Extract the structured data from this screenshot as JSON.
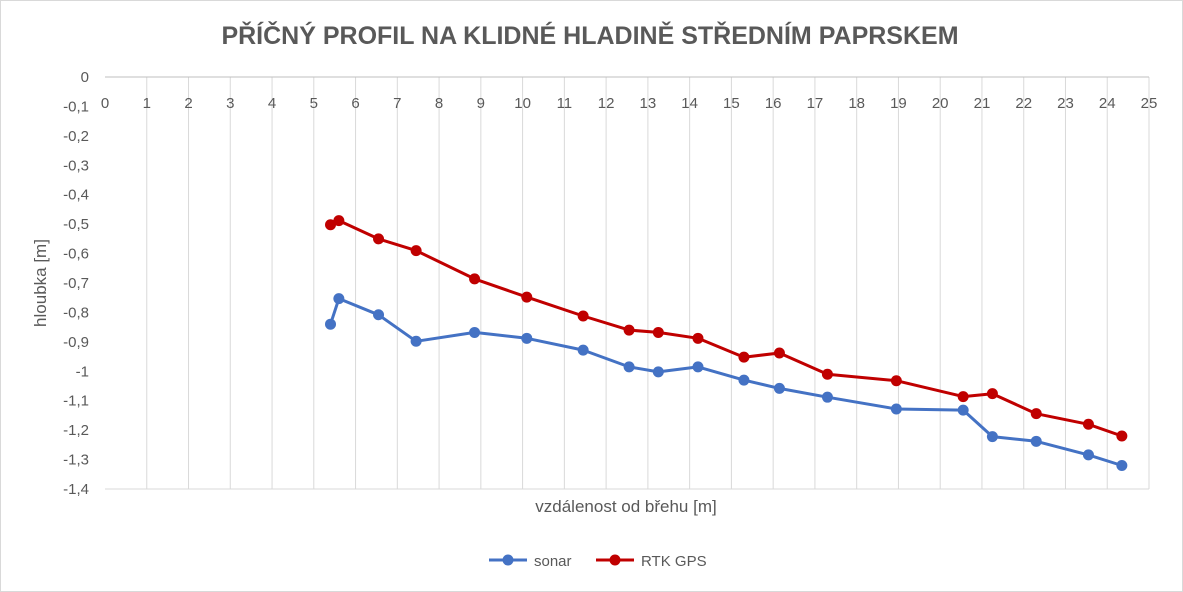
{
  "chart_data": {
    "type": "scatter",
    "title": "PŘÍČNÝ PROFIL NA KLIDNÉ HLADINĚ STŘEDNÍM PAPRSKEM",
    "xlabel": "vzdálenost od břehu [m]",
    "ylabel": "hloubka [m]",
    "xlim": [
      0,
      25
    ],
    "ylim": [
      -1.4,
      0
    ],
    "x_ticks": [
      "0",
      "1",
      "2",
      "3",
      "4",
      "5",
      "6",
      "7",
      "8",
      "9",
      "10",
      "11",
      "12",
      "13",
      "14",
      "15",
      "16",
      "17",
      "18",
      "19",
      "20",
      "21",
      "22",
      "23",
      "24",
      "25"
    ],
    "y_ticks": [
      "0",
      "-0,1",
      "-0,2",
      "-0,3",
      "-0,4",
      "-0,5",
      "-0,6",
      "-0,7",
      "-0,8",
      "-0,9",
      "-1",
      "-1,1",
      "-1,2",
      "-1,3",
      "-1,4"
    ],
    "grid": "vertical",
    "legend_position": "bottom",
    "series": [
      {
        "name": "sonar",
        "color": "#4472c4",
        "x": [
          5.4,
          5.6,
          6.55,
          7.45,
          8.85,
          10.1,
          11.45,
          12.55,
          13.25,
          14.2,
          15.3,
          16.15,
          17.3,
          18.95,
          20.55,
          21.25,
          22.3,
          23.55,
          24.35
        ],
        "y": [
          -0.84,
          -0.753,
          -0.808,
          -0.898,
          -0.868,
          -0.888,
          -0.928,
          -0.985,
          -1.002,
          -0.985,
          -1.03,
          -1.058,
          -1.088,
          -1.128,
          -1.132,
          -1.222,
          -1.238,
          -1.284,
          -1.32
        ]
      },
      {
        "name": "RTK GPS",
        "color": "#c00000",
        "x": [
          5.4,
          5.6,
          6.55,
          7.45,
          8.85,
          10.1,
          11.45,
          12.55,
          13.25,
          14.2,
          15.3,
          16.15,
          17.3,
          18.95,
          20.55,
          21.25,
          22.3,
          23.55,
          24.35
        ],
        "y": [
          -0.502,
          -0.488,
          -0.55,
          -0.59,
          -0.686,
          -0.748,
          -0.812,
          -0.86,
          -0.868,
          -0.888,
          -0.952,
          -0.938,
          -1.01,
          -1.032,
          -1.086,
          -1.076,
          -1.144,
          -1.18,
          -1.22
        ]
      }
    ]
  }
}
